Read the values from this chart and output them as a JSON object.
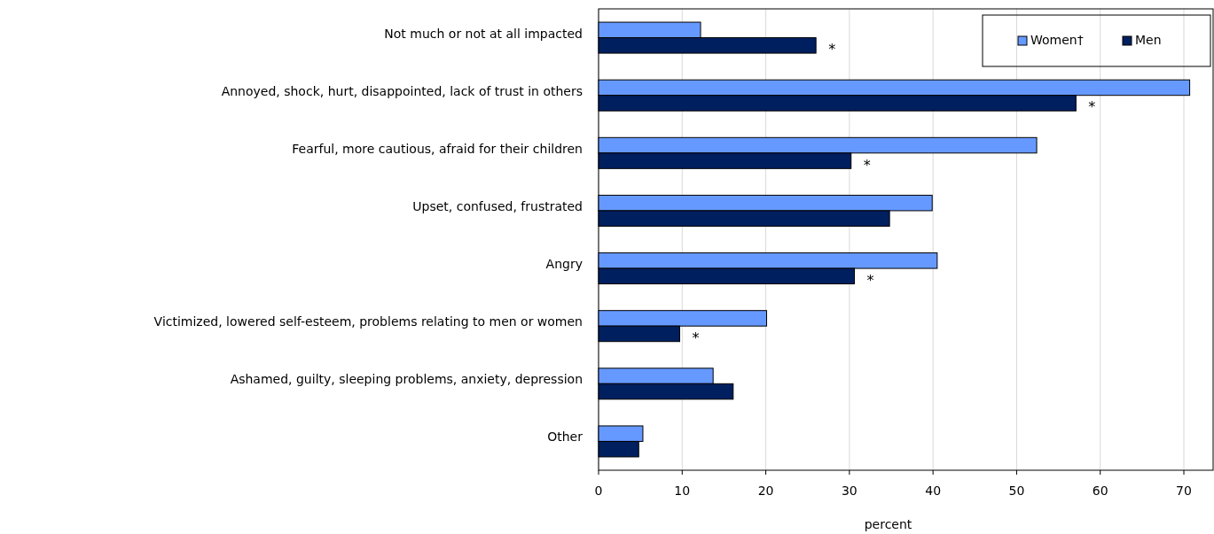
{
  "chart_data": {
    "type": "bar",
    "orientation": "horizontal",
    "xlabel": "percent",
    "categories": [
      "Not much or not at all impacted",
      "Annoyed, shock, hurt, disappointed, lack of trust in others",
      "Fearful, more cautious, afraid for their children",
      "Upset, confused, frustrated",
      "Angry",
      "Victimized, lowered self-esteem, problems relating to men or women",
      "Ashamed, guilty, sleeping problems, anxiety, depression",
      "Other"
    ],
    "series": [
      {
        "name": "Women†",
        "color": "#6699ff",
        "values": [
          12.2,
          70.7,
          52.4,
          39.9,
          40.5,
          20.1,
          13.7,
          5.3
        ]
      },
      {
        "name": "Men",
        "color": "#001f5f",
        "values": [
          26.0,
          57.1,
          30.2,
          34.8,
          30.6,
          9.7,
          16.1,
          4.8
        ]
      }
    ],
    "xlim": [
      0,
      73.5
    ],
    "xticks": [
      0,
      10,
      20,
      30,
      40,
      50,
      60,
      70
    ],
    "grid": "x",
    "legend": "top right",
    "annotations": [
      {
        "text": "*",
        "x": 26.0,
        "y": "Not much or not at all impacted"
      },
      {
        "text": "*",
        "x": 57.1,
        "y": "Annoyed, shock, hurt, disappointed, lack of trust in others"
      },
      {
        "text": "*",
        "x": 30.2,
        "y": "Fearful, more cautious, afraid for their children"
      },
      {
        "text": "*",
        "x": 30.6,
        "y": "Angry"
      },
      {
        "text": "*",
        "x": 9.7,
        "y": "Victimized, lowered self-esteem, problems relating to men or women"
      }
    ]
  }
}
